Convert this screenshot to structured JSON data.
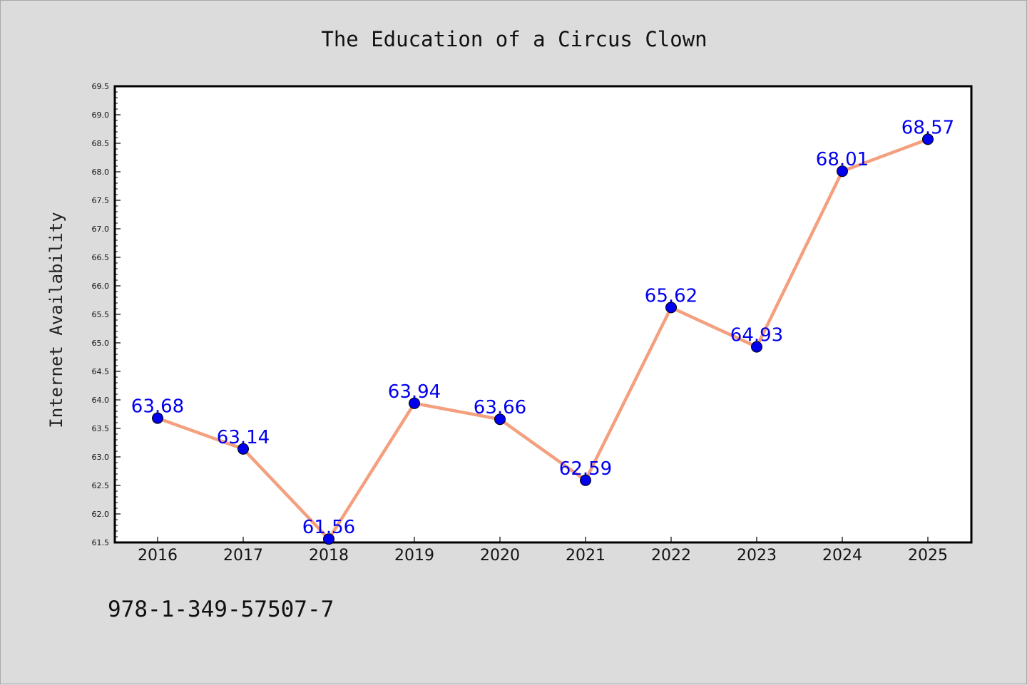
{
  "chart_data": {
    "type": "line",
    "title": "The Education of a Circus Clown",
    "xlabel": "",
    "ylabel": "Internet Availability",
    "categories": [
      "2016",
      "2017",
      "2018",
      "2019",
      "2020",
      "2021",
      "2022",
      "2023",
      "2024",
      "2025"
    ],
    "series": [
      {
        "values": [
          63.68,
          63.14,
          61.56,
          63.94,
          63.66,
          62.59,
          65.62,
          64.93,
          68.01,
          68.57
        ],
        "data_labels": [
          "63.68",
          "63.14",
          "61.56",
          "63.94",
          "63.66",
          "62.59",
          "65.62",
          "64.93",
          "68.01",
          "68.57"
        ],
        "line_color": "#f4a07f",
        "marker_color": "#0000ee"
      }
    ],
    "ylim": [
      61.5,
      69.5
    ],
    "yticks": [
      "61.5",
      "62.0",
      "62.5",
      "63.0",
      "63.5",
      "64.0",
      "64.5",
      "65.0",
      "65.5",
      "66.0",
      "66.5",
      "67.0",
      "67.5",
      "68.0",
      "68.5",
      "69.0",
      "69.5"
    ],
    "grid": false,
    "legend": "none",
    "plot_background": "#ffffff",
    "page_background": "#dcdcdc"
  },
  "footer": {
    "isbn": "978-1-349-57507-7"
  }
}
